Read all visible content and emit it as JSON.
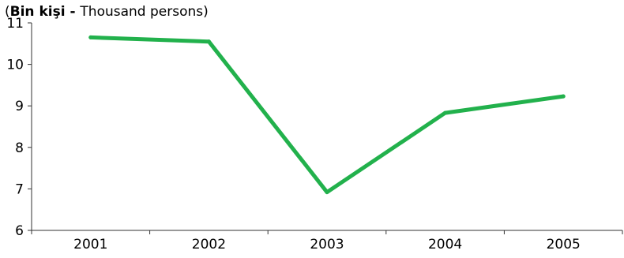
{
  "chart_data": {
    "type": "line",
    "unit_label": {
      "open": "(",
      "bold": "Bin kişi - ",
      "normal": "Thousand persons)"
    },
    "categories": [
      "2001",
      "2002",
      "2003",
      "2004",
      "2005"
    ],
    "series": [
      {
        "values": [
          10.65,
          10.55,
          6.92,
          8.83,
          9.23
        ]
      }
    ],
    "ylim": [
      6,
      11
    ],
    "yticks": [
      6,
      7,
      8,
      9,
      10,
      11
    ],
    "grid": false,
    "line_color": "#22b14c",
    "axis_color": "#333333"
  }
}
